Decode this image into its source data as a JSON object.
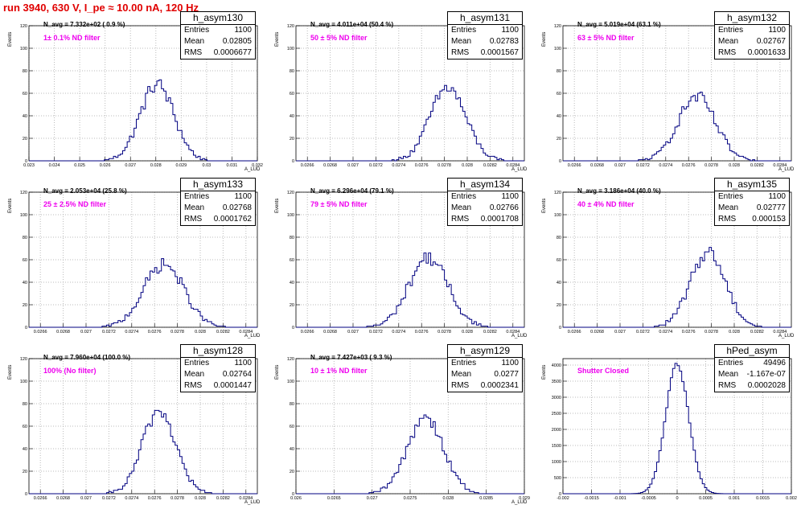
{
  "title": "run 3940,   630 V, I_pe ≈ 10.00 nA, 120 Hz",
  "colors": {
    "title": "#e00000",
    "annotation": "#ee00ee",
    "histogram": "#000080",
    "grid": "#bbbbbb"
  },
  "chart_data": [
    {
      "type": "histogram",
      "name": "h_asym130",
      "navg": "N_avg = 7.332e+02 ( 0.9 %)",
      "note": "1± 0.1% ND filter",
      "stats": [
        [
          "Entries",
          "1100"
        ],
        [
          "Mean",
          "0.02805"
        ],
        [
          "RMS",
          "0.0006677"
        ]
      ],
      "xlabel": "A_LUD",
      "ylabel": "Events",
      "xlim": [
        0.023,
        0.032
      ],
      "ylim": [
        0,
        120
      ],
      "xticks": [
        "0.023",
        "0.024",
        "0.025",
        "0.026",
        "0.027",
        "0.028",
        "0.029",
        "0.03",
        "0.031",
        "0.032"
      ],
      "yticks": [
        "0",
        "20",
        "40",
        "60",
        "80",
        "100",
        "120"
      ],
      "grid": true,
      "mean": 0.02805,
      "rms": 0.0006677,
      "peak": 68,
      "entries": 1100
    },
    {
      "type": "histogram",
      "name": "h_asym131",
      "navg": "N_avg = 4.011e+04 (50.4 %)",
      "note": "50 ± 5% ND filter",
      "stats": [
        [
          "Entries",
          "1100"
        ],
        [
          "Mean",
          "0.02783"
        ],
        [
          "RMS",
          "0.0001567"
        ]
      ],
      "xlabel": "A_LUD",
      "ylabel": "Events",
      "xlim": [
        0.0265,
        0.0285
      ],
      "ylim": [
        0,
        120
      ],
      "xticks": [
        "0.0266",
        "0.0268",
        "0.027",
        "0.0272",
        "0.0274",
        "0.0276",
        "0.0278",
        "0.028",
        "0.0282",
        "0.0284"
      ],
      "yticks": [
        "0",
        "20",
        "40",
        "60",
        "80",
        "100",
        "120"
      ],
      "grid": true,
      "mean": 0.02783,
      "rms": 0.0001567,
      "peak": 65,
      "entries": 1100
    },
    {
      "type": "histogram",
      "name": "h_asym132",
      "navg": "N_avg = 5.019e+04 (63.1 %)",
      "note": "63 ± 5% ND filter",
      "stats": [
        [
          "Entries",
          "1100"
        ],
        [
          "Mean",
          "0.02767"
        ],
        [
          "RMS",
          "0.0001633"
        ]
      ],
      "xlabel": "A_LUD",
      "ylabel": "Events",
      "xlim": [
        0.0265,
        0.0285
      ],
      "ylim": [
        0,
        120
      ],
      "xticks": [
        "0.0266",
        "0.0268",
        "0.027",
        "0.0272",
        "0.0274",
        "0.0276",
        "0.0278",
        "0.028",
        "0.0282",
        "0.0284"
      ],
      "yticks": [
        "0",
        "20",
        "40",
        "60",
        "80",
        "100",
        "120"
      ],
      "grid": true,
      "mean": 0.02767,
      "rms": 0.0001633,
      "peak": 57,
      "entries": 1100
    },
    {
      "type": "histogram",
      "name": "h_asym133",
      "navg": "N_avg = 2.053e+04 (25.8 %)",
      "note": "25 ± 2.5% ND filter",
      "stats": [
        [
          "Entries",
          "1100"
        ],
        [
          "Mean",
          "0.02768"
        ],
        [
          "RMS",
          "0.0001762"
        ]
      ],
      "xlabel": "A_LUD",
      "ylabel": "Events",
      "xlim": [
        0.0265,
        0.0285
      ],
      "ylim": [
        0,
        120
      ],
      "xticks": [
        "0.0266",
        "0.0268",
        "0.027",
        "0.0272",
        "0.0274",
        "0.0276",
        "0.0278",
        "0.028",
        "0.0282",
        "0.0284"
      ],
      "yticks": [
        "0",
        "20",
        "40",
        "60",
        "80",
        "100",
        "120"
      ],
      "grid": true,
      "mean": 0.02768,
      "rms": 0.0001762,
      "peak": 56,
      "entries": 1100
    },
    {
      "type": "histogram",
      "name": "h_asym134",
      "navg": "N_avg = 6.296e+04 (79.1 %)",
      "note": "79 ± 5% ND filter",
      "stats": [
        [
          "Entries",
          "1100"
        ],
        [
          "Mean",
          "0.02766"
        ],
        [
          "RMS",
          "0.0001708"
        ]
      ],
      "xlabel": "A_LUD",
      "ylabel": "Events",
      "xlim": [
        0.0265,
        0.0285
      ],
      "ylim": [
        0,
        120
      ],
      "xticks": [
        "0.0266",
        "0.0268",
        "0.027",
        "0.0272",
        "0.0274",
        "0.0276",
        "0.0278",
        "0.028",
        "0.0282",
        "0.0284"
      ],
      "yticks": [
        "0",
        "20",
        "40",
        "60",
        "80",
        "100",
        "120"
      ],
      "grid": true,
      "mean": 0.02766,
      "rms": 0.0001708,
      "peak": 62,
      "entries": 1100
    },
    {
      "type": "histogram",
      "name": "h_asym135",
      "navg": "N_avg = 3.186e+04 (40.0 %)",
      "note": "40 ± 4% ND filter",
      "stats": [
        [
          "Entries",
          "1100"
        ],
        [
          "Mean",
          "0.02777"
        ],
        [
          "RMS",
          "0.000153"
        ]
      ],
      "xlabel": "A_LUD",
      "ylabel": "Events",
      "xlim": [
        0.0265,
        0.0285
      ],
      "ylim": [
        0,
        120
      ],
      "xticks": [
        "0.0266",
        "0.0268",
        "0.027",
        "0.0272",
        "0.0274",
        "0.0276",
        "0.0278",
        "0.028",
        "0.0282",
        "0.0284"
      ],
      "yticks": [
        "0",
        "20",
        "40",
        "60",
        "80",
        "100",
        "120"
      ],
      "grid": true,
      "mean": 0.02777,
      "rms": 0.000153,
      "peak": 67,
      "entries": 1100
    },
    {
      "type": "histogram",
      "name": "h_asym128",
      "navg": "N_avg = 7.960e+04 (100.0 %)",
      "note": "100% (No filter)",
      "stats": [
        [
          "Entries",
          "1100"
        ],
        [
          "Mean",
          "0.02764"
        ],
        [
          "RMS",
          "0.0001447"
        ]
      ],
      "xlabel": "A_LUD",
      "ylabel": "Events",
      "xlim": [
        0.0265,
        0.0285
      ],
      "ylim": [
        0,
        120
      ],
      "xticks": [
        "0.0266",
        "0.0268",
        "0.027",
        "0.0272",
        "0.0274",
        "0.0276",
        "0.0278",
        "0.028",
        "0.0282",
        "0.0284"
      ],
      "yticks": [
        "0",
        "20",
        "40",
        "60",
        "80",
        "100",
        "120"
      ],
      "grid": true,
      "mean": 0.02764,
      "rms": 0.0001447,
      "peak": 74,
      "entries": 1100
    },
    {
      "type": "histogram",
      "name": "h_asym129",
      "navg": "N_avg = 7.427e+03 ( 9.3 %)",
      "note": "10 ± 1% ND filter",
      "stats": [
        [
          "Entries",
          "1100"
        ],
        [
          "Mean",
          "0.0277"
        ],
        [
          "RMS",
          "0.0002341"
        ]
      ],
      "xlabel": "A_LUD",
      "ylabel": "Events",
      "xlim": [
        0.026,
        0.029
      ],
      "ylim": [
        0,
        120
      ],
      "xticks": [
        "0.026",
        "0.0265",
        "0.027",
        "0.0275",
        "0.028",
        "0.0285",
        "0.029"
      ],
      "yticks": [
        "0",
        "20",
        "40",
        "60",
        "80",
        "100",
        "120"
      ],
      "grid": true,
      "mean": 0.0277,
      "rms": 0.0002341,
      "peak": 69,
      "entries": 1100
    },
    {
      "type": "histogram",
      "name": "hPed_asym",
      "navg": "",
      "note": "Shutter Closed",
      "stats": [
        [
          "Entries",
          "49496"
        ],
        [
          "Mean",
          "-1.167e-07"
        ],
        [
          "RMS",
          "0.0002028"
        ]
      ],
      "xlabel": "",
      "ylabel": "Events",
      "xlim": [
        -0.002,
        0.002
      ],
      "ylim": [
        0,
        4200
      ],
      "xticks": [
        "-0.002",
        "-0.0015",
        "-0.001",
        "-0.0005",
        "0",
        "0.0005",
        "0.001",
        "0.0015",
        "0.002"
      ],
      "yticks": [
        "0",
        "500",
        "1000",
        "1500",
        "2000",
        "2500",
        "3000",
        "3500",
        "4000"
      ],
      "grid": true,
      "mean": -1.167e-07,
      "rms": 0.0002028,
      "peak": 4000,
      "entries": 49496
    }
  ]
}
